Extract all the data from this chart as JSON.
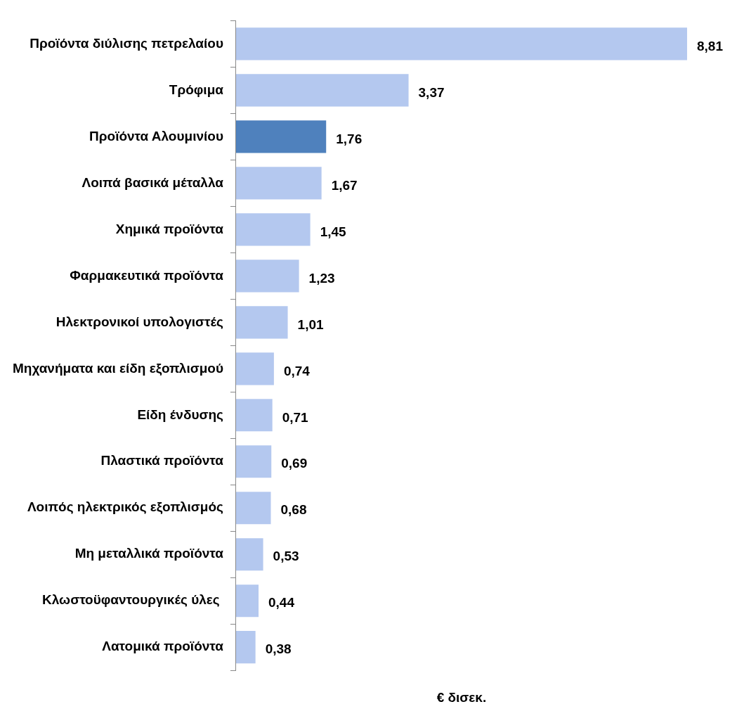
{
  "chart_data": {
    "type": "bar",
    "orientation": "horizontal",
    "xlabel": "€ δισεκ.",
    "categories": [
      "Προϊόντα διύλισης πετρελαίου",
      "Τρόφιμα",
      "Προϊόντα Αλουμινίου",
      "Λοιπά βασικά μέταλλα",
      "Χημικά προϊόντα",
      "Φαρμακευτικά προϊόντα",
      "Ηλεκτρονικοί υπολογιστές",
      "Μηχανήματα και είδη εξοπλισμού",
      "Είδη ένδυσης",
      "Πλαστικά προϊόντα",
      "Λοιπός ηλεκτρικός εξοπλισμός",
      "Μη μεταλλικά προϊόντα",
      "Κλωστοϋφαντουργικές ύλες ",
      "Λατομικά προϊόντα"
    ],
    "values": [
      8.81,
      3.37,
      1.76,
      1.67,
      1.45,
      1.23,
      1.01,
      0.74,
      0.71,
      0.69,
      0.68,
      0.53,
      0.44,
      0.38
    ],
    "colors": [
      "#b4c8ef",
      "#b4c8ef",
      "#4f81bd",
      "#b4c8ef",
      "#b4c8ef",
      "#b4c8ef",
      "#b4c8ef",
      "#b4c8ef",
      "#b4c8ef",
      "#b4c8ef",
      "#b4c8ef",
      "#b4c8ef",
      "#b4c8ef",
      "#b4c8ef"
    ],
    "value_labels": [
      "8,81",
      "3,37",
      "1,76",
      "1,67",
      "1,45",
      "1,23",
      "1,01",
      "0,74",
      "0,71",
      "0,69",
      "0,68",
      "0,53",
      "0,44",
      "0,38"
    ],
    "grid": false,
    "legend": false
  }
}
